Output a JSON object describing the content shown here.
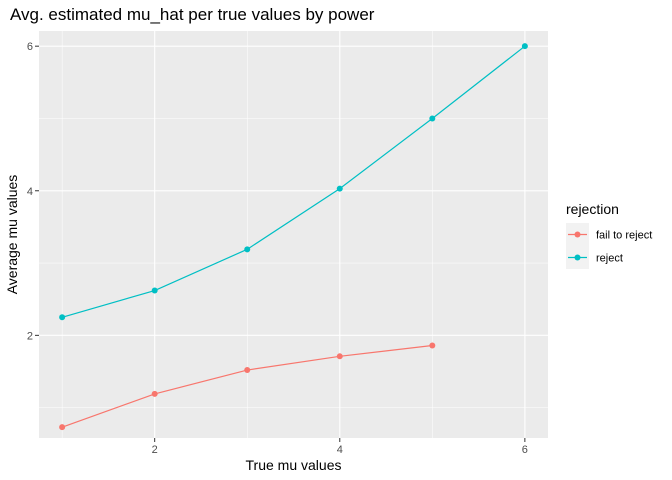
{
  "chart_data": {
    "type": "line",
    "title": "Avg. estimated mu_hat per true values by power",
    "xlabel": "True mu values",
    "ylabel": "Average mu values",
    "xlim": [
      0.75,
      6.25
    ],
    "ylim": [
      0.58,
      6.21
    ],
    "xticks": [
      2,
      4,
      6
    ],
    "yticks": [
      2,
      4,
      6
    ],
    "xtick_labels": [
      "2",
      "4",
      "6"
    ],
    "ytick_labels": [
      "2",
      "4",
      "6"
    ],
    "grid": true,
    "legend": {
      "title": "rejection",
      "position": "right"
    },
    "series": [
      {
        "name": "fail to reject",
        "color": "#F8766D",
        "x": [
          1,
          2,
          3,
          4,
          5
        ],
        "y": [
          0.73,
          1.19,
          1.52,
          1.71,
          1.86
        ]
      },
      {
        "name": "reject",
        "color": "#00BFC4",
        "x": [
          1,
          2,
          3,
          4,
          5,
          6
        ],
        "y": [
          2.25,
          2.62,
          3.19,
          4.03,
          5.0,
          6.0
        ]
      }
    ]
  },
  "colors": {
    "panel_background": "#EBEBEB",
    "grid_major": "#FFFFFF",
    "legend_key_background": "#F2F2F2"
  }
}
